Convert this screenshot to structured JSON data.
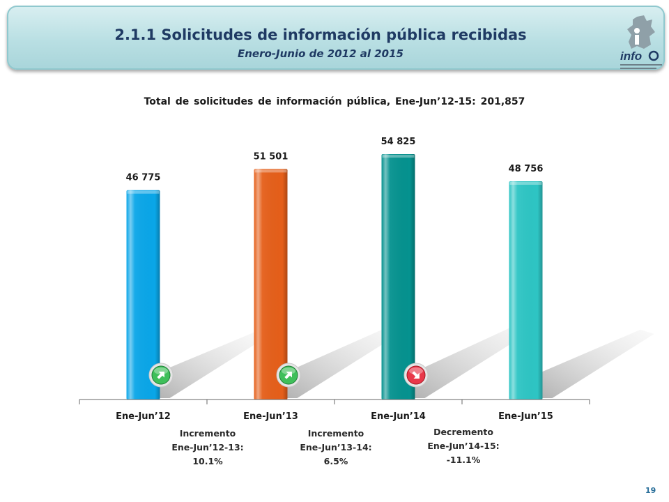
{
  "header": {
    "title": "2.1.1 Solicitudes de información pública recibidas",
    "subtitle": "Enero-Junio de 2012 al 2015",
    "logo_text": "info"
  },
  "page_number": "19",
  "colors": {
    "header_bg": "#b9dfe3",
    "title_text": "#1f3a63",
    "increase_arrow": "#3fbf5a",
    "decrease_arrow": "#e8384a"
  },
  "chart_data": {
    "type": "bar",
    "title": "Total de solicitudes de información pública, Ene-Jun’12-15: 201,857",
    "categories": [
      "Ene-Jun’12",
      "Ene-Jun’13",
      "Ene-Jun’14",
      "Ene-Jun’15"
    ],
    "values": [
      46775,
      51501,
      54825,
      48756
    ],
    "value_labels": [
      "46 775",
      "51 501",
      "54 825",
      "48 756"
    ],
    "bar_colors": [
      "#0aa6e8",
      "#e55f1a",
      "#05928f",
      "#2ec5c4"
    ],
    "ylim": [
      0,
      62000
    ],
    "grid": false,
    "changes": [
      {
        "direction": "up",
        "label": "Incremento",
        "period": "Ene-Jun’12-13:",
        "value": "10.1%"
      },
      {
        "direction": "up",
        "label": "Incremento",
        "period": "Ene-Jun’13-14:",
        "value": "6.5%"
      },
      {
        "direction": "down",
        "label": "Decremento",
        "period": "Ene-Jun’14-15:",
        "value": "-11.1%"
      }
    ]
  }
}
